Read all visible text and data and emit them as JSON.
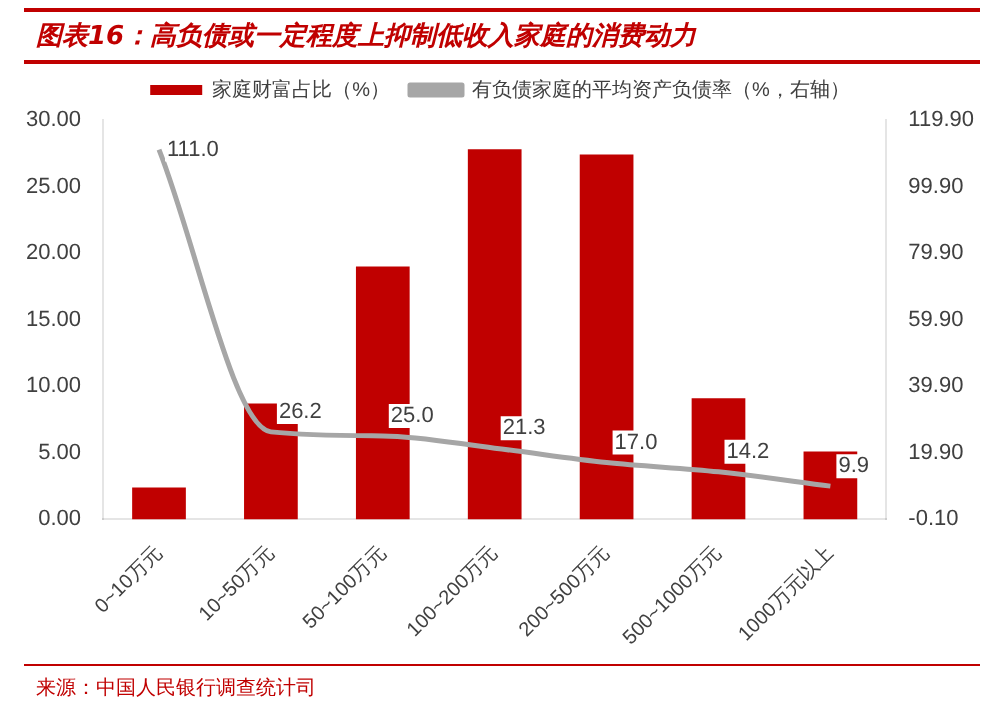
{
  "chart_data": {
    "type": "bar",
    "title": "图表16：高负债或一定程度上抑制低收入家庭的消费动力",
    "categories": [
      "0~10万元",
      "10~50万元",
      "50~100万元",
      "100~200万元",
      "200~500万元",
      "500~1000万元",
      "1000万元以上"
    ],
    "series": [
      {
        "name": "家庭财富占比（%）",
        "color": "#c00000",
        "values": [
          2.4,
          8.7,
          19.0,
          27.8,
          27.4,
          9.1,
          5.1
        ]
      },
      {
        "name": "有负债家庭的平均资产负债率（%，右轴）",
        "type": "line",
        "axis": "y2",
        "color": "#a6a6a6",
        "values": [
          111.0,
          26.2,
          25.0,
          21.3,
          17.0,
          14.2,
          9.9
        ],
        "value_labels": [
          "111.0",
          "26.2",
          "25.0",
          "21.3",
          "17.0",
          "14.2",
          "9.9"
        ]
      }
    ],
    "ylim": [
      0,
      30
    ],
    "yticks": [
      {
        "value": 0,
        "label": "0.00"
      },
      {
        "value": 5,
        "label": "5.00"
      },
      {
        "value": 10,
        "label": "10.00"
      },
      {
        "value": 15,
        "label": "15.00"
      },
      {
        "value": 20,
        "label": "20.00"
      },
      {
        "value": 25,
        "label": "25.00"
      },
      {
        "value": 30,
        "label": "30.00"
      }
    ],
    "y2lim": [
      -0.1,
      119.9
    ],
    "y2ticks": [
      {
        "value": -0.1,
        "label": "-0.10"
      },
      {
        "value": 19.9,
        "label": "19.90"
      },
      {
        "value": 39.9,
        "label": "39.90"
      },
      {
        "value": 59.9,
        "label": "59.90"
      },
      {
        "value": 79.9,
        "label": "79.90"
      },
      {
        "value": 99.9,
        "label": "99.90"
      },
      {
        "value": 119.9,
        "label": "119.90"
      }
    ],
    "legend": "top",
    "grid": false,
    "marker": "none",
    "line_style": "solid",
    "annotations": [
      "来源：中国人民银行调查统计司"
    ]
  }
}
